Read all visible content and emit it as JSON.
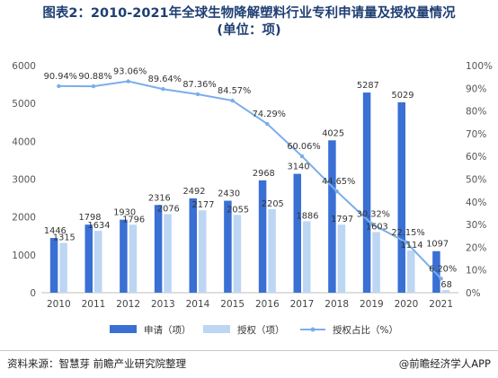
{
  "title_line1": "图表2：2010-2021年全球生物降解塑料行业专利申请量及授权量情况",
  "title_line2": "(单位：项)",
  "source": "资料来源：智慧芽 前瞻产业研究院整理",
  "brand": "@前瞻经济学人APP",
  "colors": {
    "apply": "#3a6fd4",
    "grant": "#bcd6f4",
    "ratio": "#7aaeea",
    "axis_text": "#555555",
    "grid": "#dcdcdc"
  },
  "chart_data": {
    "type": "bar",
    "categories": [
      "2010",
      "2011",
      "2012",
      "2013",
      "2014",
      "2015",
      "2016",
      "2017",
      "2018",
      "2019",
      "2020",
      "2021"
    ],
    "series": [
      {
        "name": "申请（项）",
        "type": "bar",
        "axis": "left",
        "values": [
          1446,
          1798,
          1930,
          2316,
          2492,
          2430,
          2968,
          3140,
          4025,
          5287,
          5029,
          1097
        ],
        "labels": [
          "1446",
          "1798",
          "1930",
          "2316",
          "2492",
          "2430",
          "2968",
          "3140",
          "4025",
          "5287",
          "5029",
          "1097"
        ]
      },
      {
        "name": "授权（项）",
        "type": "bar",
        "axis": "left",
        "values": [
          1315,
          1634,
          1796,
          2076,
          2177,
          2055,
          2205,
          1886,
          1797,
          1603,
          1114,
          68
        ],
        "labels": [
          "1315",
          "1634",
          "1796",
          "2076",
          "2177",
          "2055",
          "2205",
          "1886",
          "1797",
          "1603",
          "1114",
          "68"
        ]
      },
      {
        "name": "授权占比（%）",
        "type": "line",
        "axis": "right",
        "values": [
          90.94,
          90.88,
          93.06,
          89.64,
          87.36,
          84.57,
          74.29,
          60.06,
          44.65,
          30.32,
          22.15,
          6.2
        ],
        "labels": [
          "90.94%",
          "90.88%",
          "93.06%",
          "89.64%",
          "87.36%",
          "84.57%",
          "74.29%",
          "60.06%",
          "44.65%",
          "30.32%",
          "22.15%",
          "6.20%"
        ]
      }
    ],
    "y_left": {
      "min": 0,
      "max": 6000,
      "ticks": [
        "0",
        "1000",
        "2000",
        "3000",
        "4000",
        "5000",
        "6000"
      ]
    },
    "y_right": {
      "min": 0,
      "max": 100,
      "ticks": [
        "0%",
        "10%",
        "20%",
        "30%",
        "40%",
        "50%",
        "60%",
        "70%",
        "80%",
        "90%",
        "100%"
      ]
    },
    "grid": false,
    "legend_position": "bottom"
  }
}
